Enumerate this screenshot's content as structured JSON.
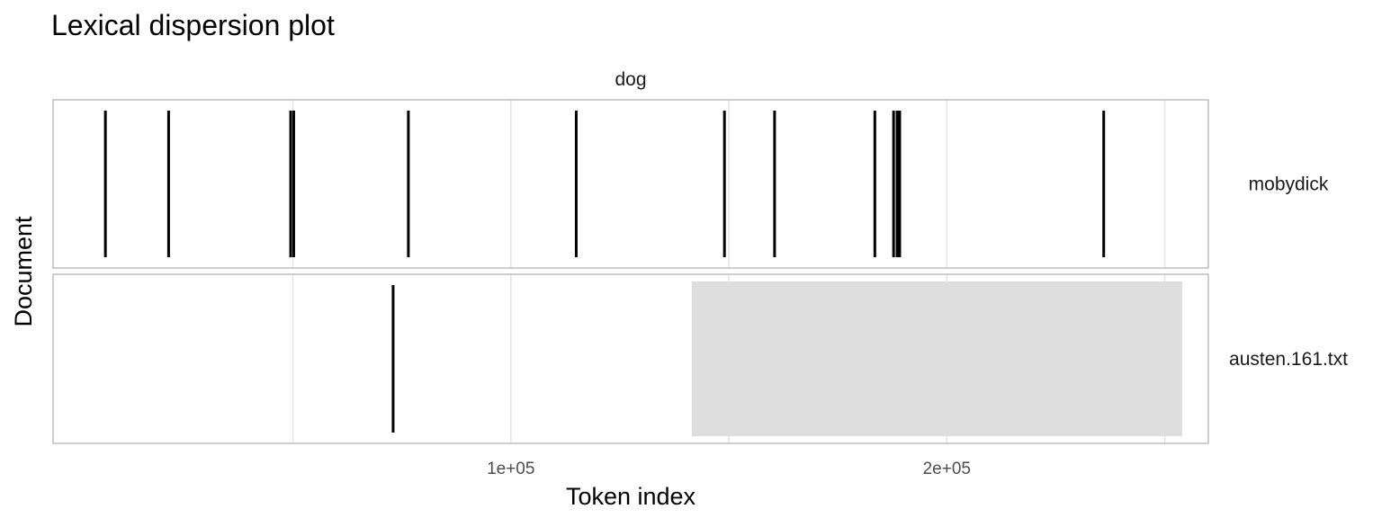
{
  "chart_data": {
    "type": "lexical-dispersion",
    "title": "Lexical dispersion plot",
    "xlabel": "Token index",
    "ylabel": "Document",
    "facet": "dog",
    "xlim": [
      -5000,
      260000
    ],
    "x_ticks": [
      100000,
      200000
    ],
    "x_tick_labels": [
      "1e+05",
      "2e+05"
    ],
    "x_minor_grid": [
      50000,
      150000,
      250000
    ],
    "grid": true,
    "documents": [
      {
        "name": "mobydick",
        "positions": [
          7000,
          21500,
          49500,
          50200,
          76500,
          115000,
          149000,
          160500,
          183500,
          187800,
          188600,
          189200,
          236000
        ]
      },
      {
        "name": "austen.161.txt",
        "positions": [
          73000
        ],
        "shaded_region": [
          141500,
          254000
        ]
      }
    ],
    "colors": {
      "mark": "#000000",
      "shade": "#dedede",
      "grid": "#e5e5e5",
      "border": "#b3b3b3"
    }
  }
}
